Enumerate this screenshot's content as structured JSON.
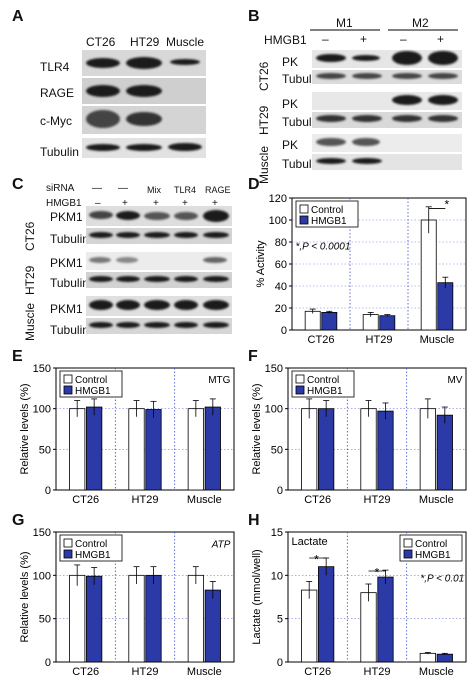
{
  "panels": {
    "a": "A",
    "b": "B",
    "c": "C",
    "d": "D",
    "e": "E",
    "f": "F",
    "g": "G",
    "h": "H"
  },
  "panel_a": {
    "columns": [
      "CT26",
      "HT29",
      "Muscle"
    ],
    "rows": [
      "TLR4",
      "RAGE",
      "c-Myc",
      "Tubulin"
    ]
  },
  "panel_b": {
    "groups": [
      "M1",
      "M2"
    ],
    "treatment_label": "HMGB1",
    "treatment_signs": [
      "–",
      "+",
      "–",
      "+"
    ],
    "cell_lines": [
      "CT26",
      "HT29",
      "Muscle"
    ],
    "rows": [
      "PK",
      "Tubulin"
    ]
  },
  "panel_c": {
    "sirna_label": "siRNA",
    "hmgb1_label": "HMGB1",
    "sirna_values": [
      "—",
      "—",
      "Mix",
      "TLR4",
      "RAGE"
    ],
    "hmgb1_values": [
      "–",
      "+",
      "+",
      "+",
      "+"
    ],
    "cell_lines": [
      "CT26",
      "HT29",
      "Muscle"
    ],
    "rows": [
      "PKM1",
      "Tubulin"
    ]
  },
  "chart_data": [
    {
      "panel": "D",
      "type": "bar",
      "categories": [
        "CT26",
        "HT29",
        "Muscle"
      ],
      "series": [
        {
          "name": "Control",
          "values": [
            17,
            14,
            100
          ],
          "errors": [
            2,
            2,
            12
          ]
        },
        {
          "name": "HMGB1",
          "values": [
            16,
            13,
            43
          ],
          "errors": [
            1,
            1,
            5
          ]
        }
      ],
      "xlabel": "",
      "ylabel": "% Activity",
      "ylim": [
        0,
        120
      ],
      "yticks": [
        "0",
        "20",
        "40",
        "60",
        "80",
        "100",
        "120"
      ],
      "annotations": [
        "*,P < 0.0001",
        "*"
      ],
      "legend": "top-left",
      "grid": "dotted category separators"
    },
    {
      "panel": "E",
      "type": "bar",
      "categories": [
        "CT26",
        "HT29",
        "Muscle"
      ],
      "series": [
        {
          "name": "Control",
          "values": [
            100,
            100,
            100
          ],
          "errors": [
            10,
            10,
            10
          ]
        },
        {
          "name": "HMGB1",
          "values": [
            102,
            99,
            102
          ],
          "errors": [
            10,
            10,
            10
          ]
        }
      ],
      "xlabel": "",
      "ylabel": "Relative levels (%)",
      "ylim": [
        0,
        150
      ],
      "yticks": [
        "0",
        "50",
        "100",
        "150"
      ],
      "annotations": [
        "MTG"
      ],
      "legend": "top-left"
    },
    {
      "panel": "F",
      "type": "bar",
      "categories": [
        "CT26",
        "HT29",
        "Muscle"
      ],
      "series": [
        {
          "name": "Control",
          "values": [
            100,
            100,
            100
          ],
          "errors": [
            12,
            10,
            12
          ]
        },
        {
          "name": "HMGB1",
          "values": [
            100,
            97,
            92
          ],
          "errors": [
            10,
            10,
            10
          ]
        }
      ],
      "xlabel": "",
      "ylabel": "Relative levels (%)",
      "ylim": [
        0,
        150
      ],
      "yticks": [
        "0",
        "50",
        "100",
        "150"
      ],
      "annotations": [
        "MV"
      ],
      "legend": "top-left"
    },
    {
      "panel": "G",
      "type": "bar",
      "categories": [
        "CT26",
        "HT29",
        "Muscle"
      ],
      "series": [
        {
          "name": "Control",
          "values": [
            100,
            100,
            100
          ],
          "errors": [
            12,
            10,
            10
          ]
        },
        {
          "name": "HMGB1",
          "values": [
            99,
            100,
            83
          ],
          "errors": [
            10,
            10,
            10
          ]
        }
      ],
      "xlabel": "",
      "ylabel": "Relative levels (%)",
      "ylim": [
        0,
        150
      ],
      "yticks": [
        "0",
        "50",
        "100",
        "150"
      ],
      "annotations": [
        "ATP"
      ],
      "legend": "top-left"
    },
    {
      "panel": "H",
      "type": "bar",
      "categories": [
        "CT26",
        "HT29",
        "Muscle"
      ],
      "series": [
        {
          "name": "Control",
          "values": [
            8.3,
            8.0,
            1.0
          ],
          "errors": [
            1.0,
            1.0,
            0.1
          ]
        },
        {
          "name": "HMGB1",
          "values": [
            11.0,
            9.8,
            0.9
          ],
          "errors": [
            1.0,
            0.8,
            0.1
          ]
        }
      ],
      "xlabel": "",
      "ylabel": "Lactate (mmol/well)",
      "ylim": [
        0,
        15
      ],
      "yticks": [
        "0",
        "5",
        "10",
        "15"
      ],
      "annotations": [
        "Lactate",
        "*,P < 0.01",
        "*",
        "*"
      ],
      "legend": "top-right"
    }
  ],
  "colors": {
    "control": "#ffffff",
    "hmgb1": "#2b3aa6",
    "grid": "#3a4ad0",
    "axis": "#000000"
  }
}
